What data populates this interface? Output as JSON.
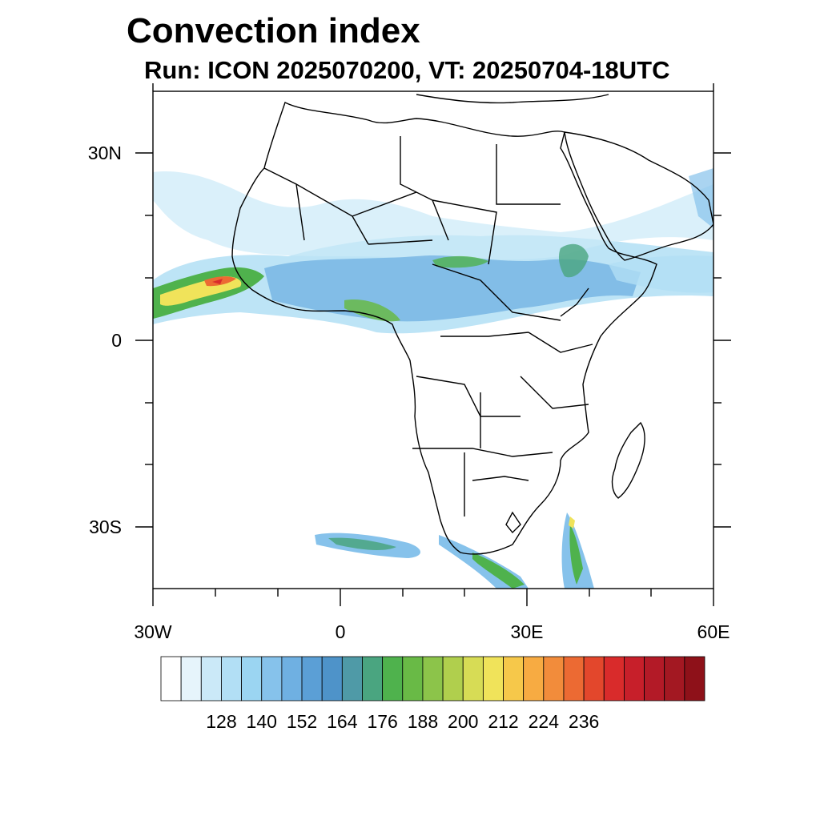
{
  "title": "Convection index",
  "subtitle": "Run: ICON 2025070200,  VT: 20250704-18UTC",
  "axes": {
    "lat_labels": [
      "30N",
      "0",
      "30S"
    ],
    "lon_labels": [
      "30W",
      "0",
      "30E",
      "60E"
    ],
    "lat_range": [
      -40,
      40
    ],
    "lon_range": [
      -30,
      60
    ]
  },
  "colorbar": {
    "labels": [
      "128",
      "140",
      "152",
      "164",
      "176",
      "188",
      "200",
      "212",
      "224",
      "236"
    ],
    "colors": [
      "#ffffff",
      "#e6f4fb",
      "#cbe9f8",
      "#b2dff5",
      "#9bd5f2",
      "#86c2eb",
      "#6fb0e2",
      "#5b9fd6",
      "#4e93c9",
      "#4f9aa7",
      "#4aa580",
      "#4fb24d",
      "#69ba46",
      "#8cc44a",
      "#b0cf4d",
      "#d7dc55",
      "#f0e35a",
      "#f6c84a",
      "#f7ab42",
      "#f28c3b",
      "#ec6a33",
      "#e3472c",
      "#d92b2b",
      "#c71f2a",
      "#b31a27",
      "#a31822",
      "#8e1119"
    ]
  },
  "colors": {
    "coast": "#000000",
    "background": "#ffffff"
  }
}
